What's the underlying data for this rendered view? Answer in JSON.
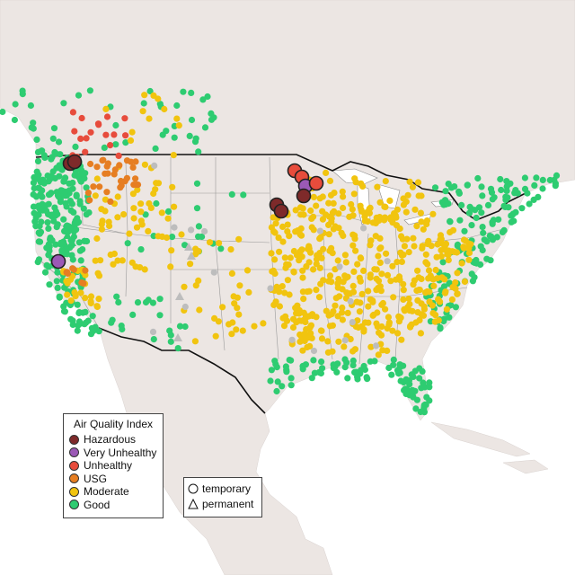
{
  "legend": {
    "title": "Air Quality Index",
    "items": [
      {
        "label": "Hazardous",
        "color": "#7e2a2a"
      },
      {
        "label": "Very Unhealthy",
        "color": "#9b59b6"
      },
      {
        "label": "Unhealthy",
        "color": "#e74c3c"
      },
      {
        "label": "USG",
        "color": "#e67e22"
      },
      {
        "label": "Moderate",
        "color": "#f1c40f"
      },
      {
        "label": "Good",
        "color": "#2ecc71"
      }
    ]
  },
  "monitor_types": [
    {
      "label": "temporary",
      "shape": "circle-icon"
    },
    {
      "label": "permanent",
      "shape": "triangle-icon"
    }
  ],
  "colors": {
    "ocean": "#ffffff",
    "land": "#efe9e6",
    "border": "#111111",
    "state_lines": "#9a9a9a",
    "no_data": "#bdbdbd"
  }
}
